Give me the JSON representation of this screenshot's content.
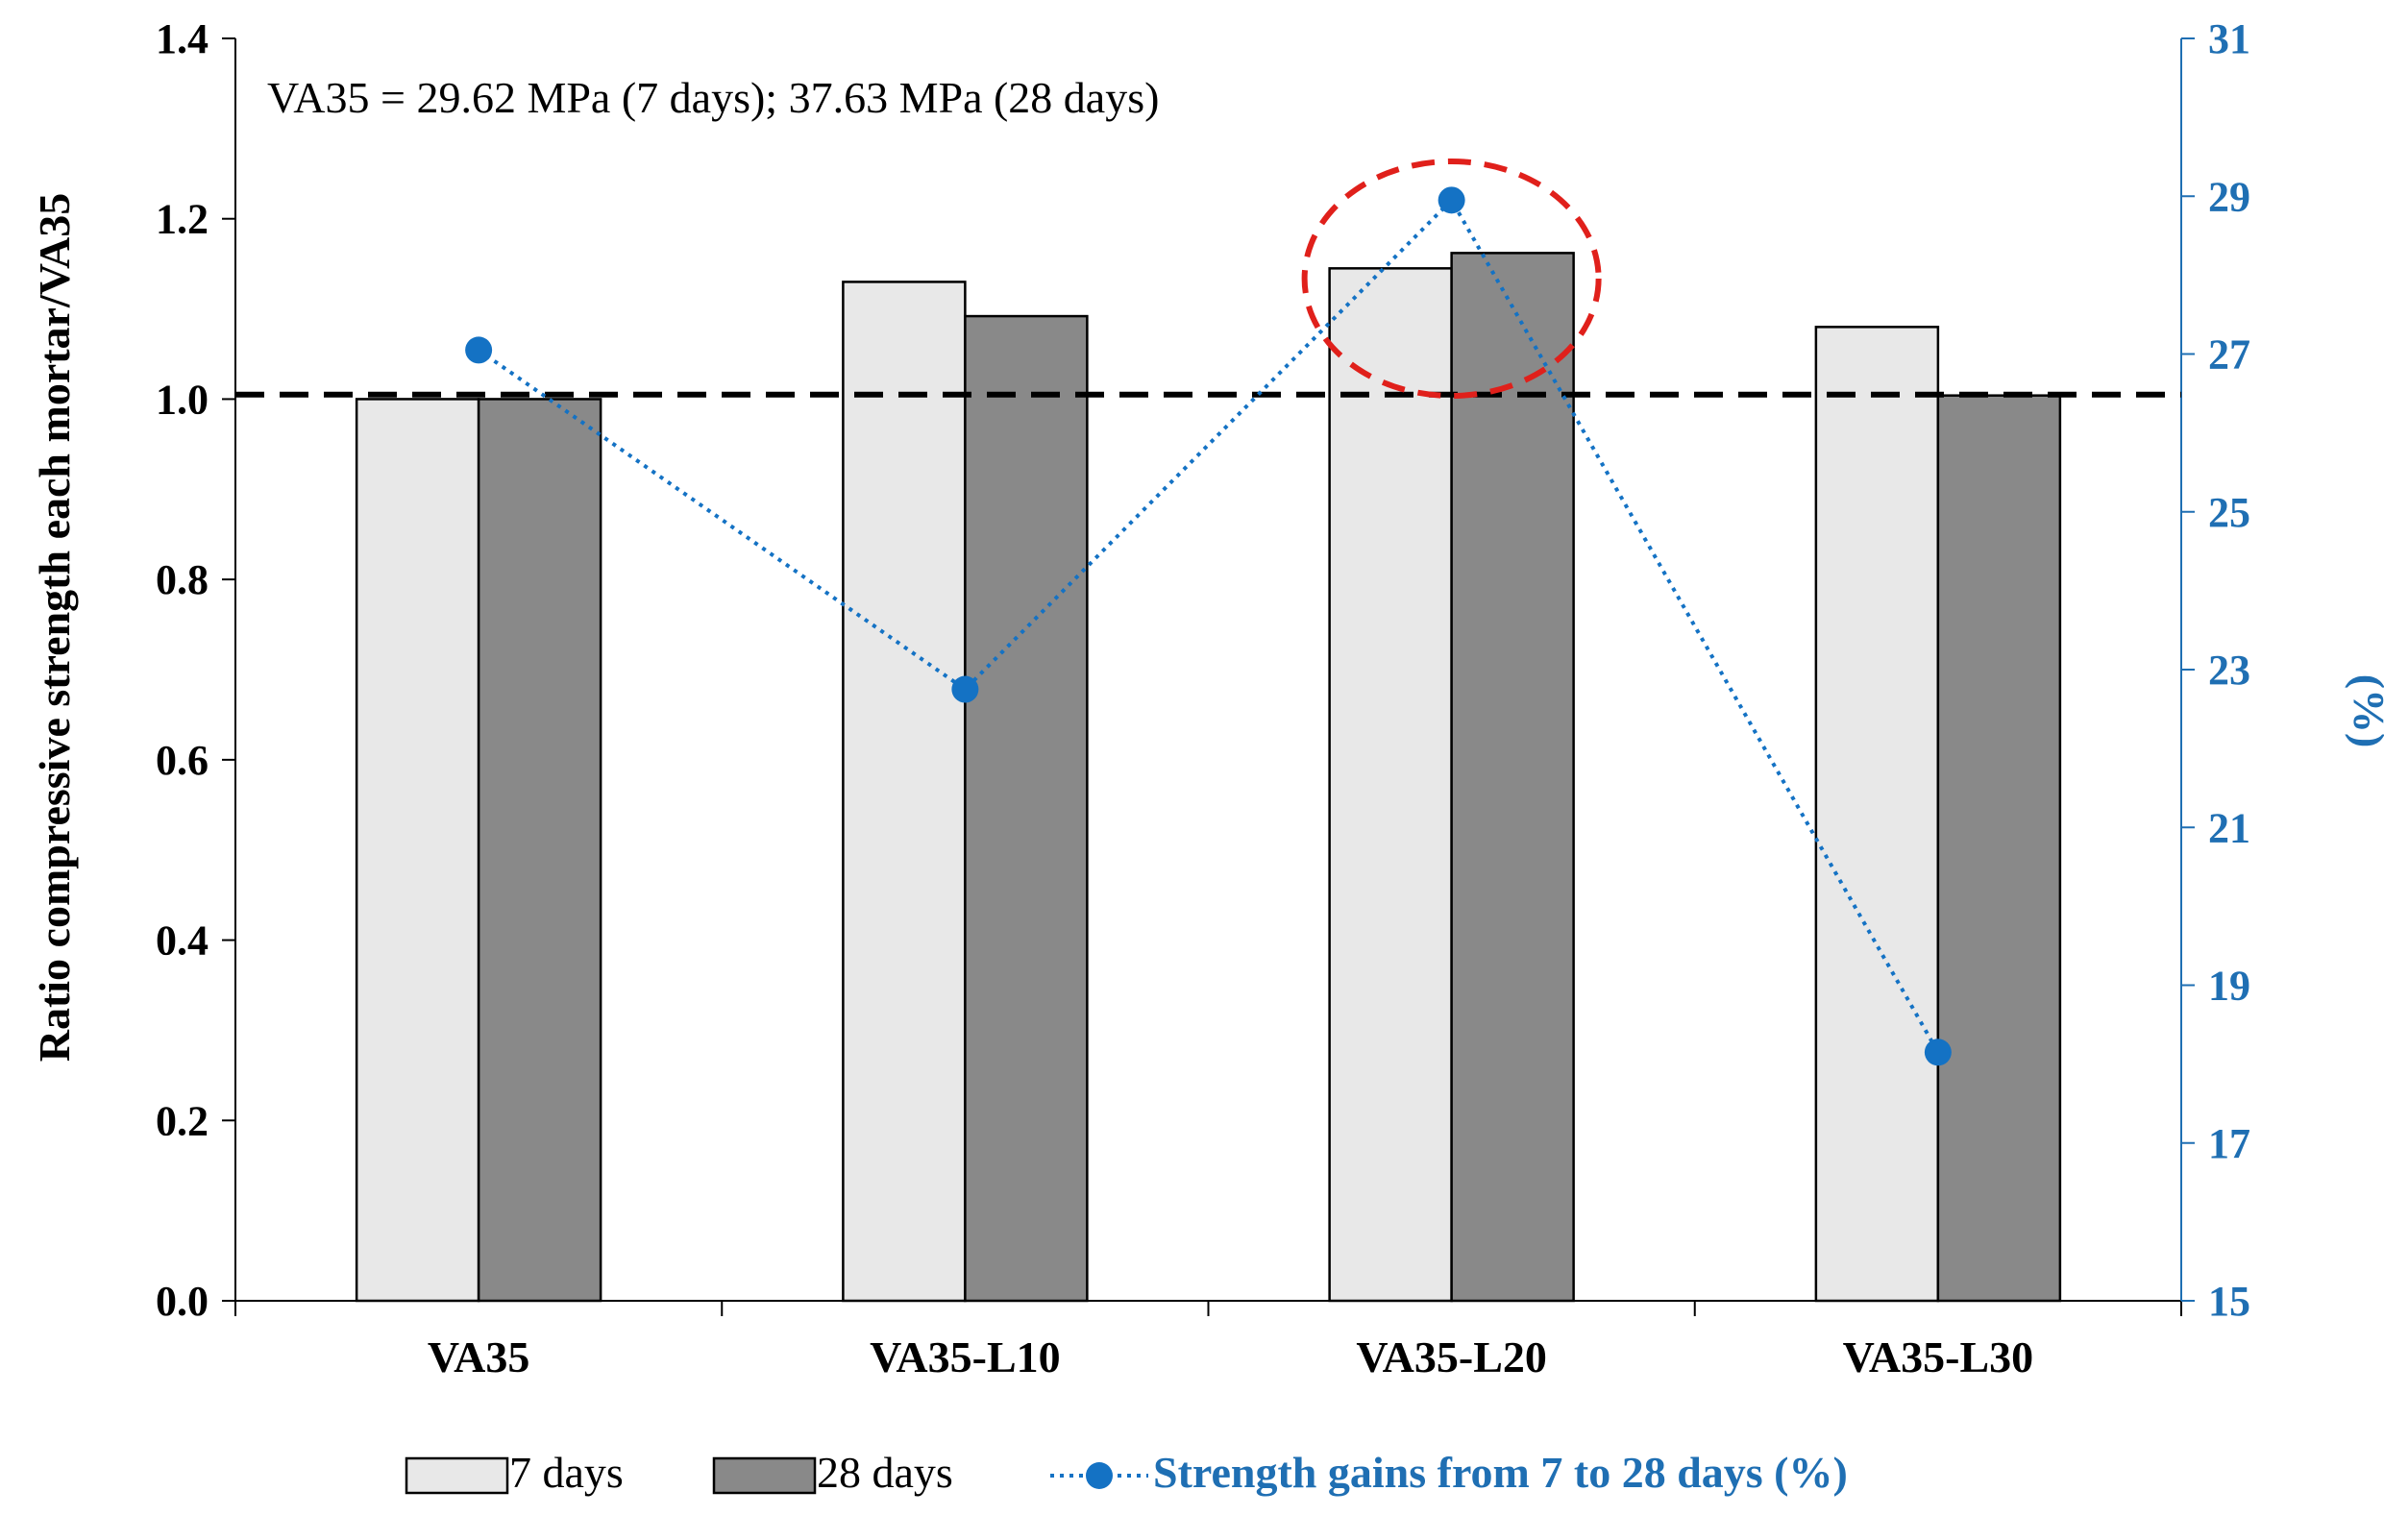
{
  "chart_data": {
    "type": "bar",
    "annotation": "VA35 = 29.62 MPa (7 days);  37.63 MPa (28 days)",
    "categories": [
      "VA35",
      "VA35-L10",
      "VA35-L20",
      "VA35-L30"
    ],
    "ylabel": "Ratio compressive strength each mortar/VA35",
    "y2label": "(%)",
    "ylim": [
      0,
      1.4
    ],
    "y_ticks": [
      "0.0",
      "0.2",
      "0.4",
      "0.6",
      "0.8",
      "1.0",
      "1.2",
      "1.4"
    ],
    "y2lim": [
      15,
      31
    ],
    "y2_ticks": [
      "15",
      "17",
      "19",
      "21",
      "23",
      "25",
      "27",
      "29",
      "31"
    ],
    "reference_line": 1.005,
    "series": [
      {
        "name": "7 days",
        "kind": "bar",
        "values": [
          1.0,
          1.13,
          1.145,
          1.08
        ]
      },
      {
        "name": "28 days",
        "kind": "bar",
        "values": [
          1.0,
          1.092,
          1.162,
          1.004
        ]
      },
      {
        "name": "Strength gains from 7 to 28 days (%)",
        "kind": "line",
        "axis": "right",
        "values": [
          27.05,
          22.75,
          28.95,
          18.15
        ]
      }
    ],
    "highlight_category": "VA35-L20",
    "colors": {
      "bar_7days": "#e8e8e8",
      "bar_28days": "#898989",
      "bar_stroke": "#000000",
      "line": "#1472c4",
      "right_axis": "#1f6fb3",
      "highlight": "#e0201b",
      "reference": "#000000"
    },
    "legend_position": "bottom"
  }
}
